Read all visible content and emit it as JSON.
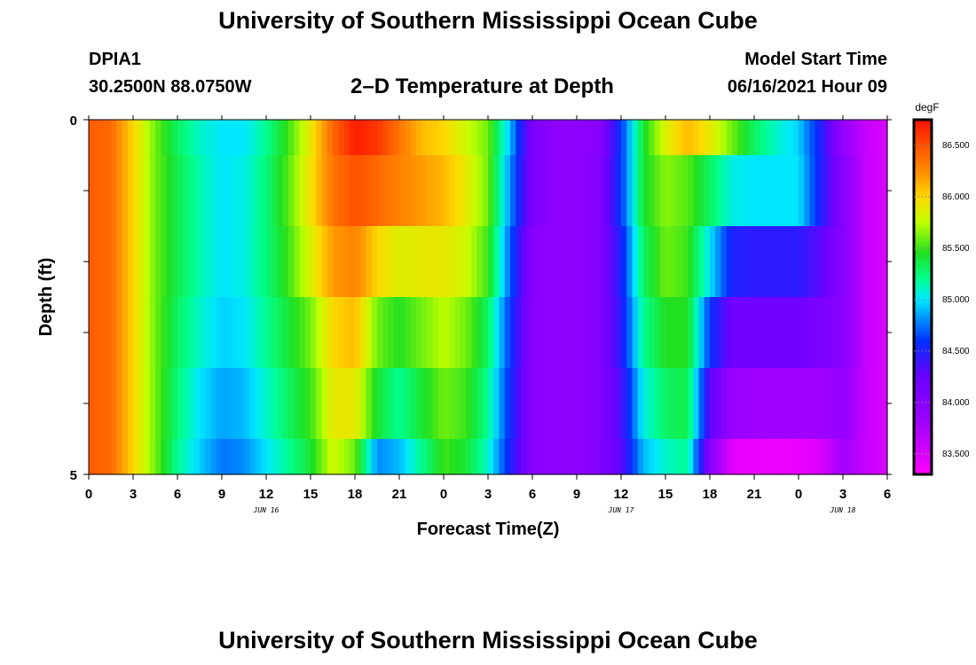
{
  "header": {
    "title": "University of Southern Mississippi Ocean Cube",
    "station_id": "DPIA1",
    "coords": "30.2500N  88.0750W",
    "plot_title": "2–D Temperature at Depth",
    "model_label": "Model Start Time",
    "model_time": "06/16/2021 Hour 09"
  },
  "footer": {
    "title": "University of Southern Mississippi Ocean Cube"
  },
  "chart_data": {
    "type": "heatmap",
    "title": "2–D Temperature at Depth",
    "xlabel": "Forecast Time(Z)",
    "ylabel": "Depth (ft)",
    "x_unit": "hours since 2021-06-16 00Z",
    "xlim": [
      0,
      54
    ],
    "ylim": [
      0,
      5
    ],
    "y_ticks": [
      0,
      5
    ],
    "x_tick_labels": [
      "0",
      "3",
      "6",
      "9",
      "12",
      "15",
      "18",
      "21",
      "0",
      "3",
      "6",
      "9",
      "12",
      "15",
      "18",
      "21",
      "0",
      "3",
      "6"
    ],
    "date_labels": [
      {
        "x": 12,
        "label": "JUN 16"
      },
      {
        "x": 36,
        "label": "JUN 17"
      },
      {
        "x": 51,
        "label": "JUN 18"
      }
    ],
    "colorbar": {
      "unit": "degF",
      "range": [
        83.3,
        86.75
      ],
      "ticks": [
        "83.500",
        "84.000",
        "84.500",
        "85.000",
        "85.500",
        "86.000",
        "86.500"
      ],
      "stops": [
        {
          "v": 83.3,
          "c": "#ff00ff"
        },
        {
          "v": 83.8,
          "c": "#a000ff"
        },
        {
          "v": 84.25,
          "c": "#6a00ff"
        },
        {
          "v": 84.6,
          "c": "#0030ff"
        },
        {
          "v": 85.0,
          "c": "#00e8ff"
        },
        {
          "v": 85.2,
          "c": "#00ff90"
        },
        {
          "v": 85.45,
          "c": "#20e020"
        },
        {
          "v": 85.75,
          "c": "#c0ff00"
        },
        {
          "v": 86.0,
          "c": "#ffd800"
        },
        {
          "v": 86.2,
          "c": "#ff9a00"
        },
        {
          "v": 86.5,
          "c": "#ff5000"
        },
        {
          "v": 86.75,
          "c": "#ff1000"
        }
      ]
    },
    "depths": [
      0,
      1,
      2,
      3,
      4,
      5
    ],
    "times": [
      0,
      1.5,
      3,
      4.5,
      6,
      7.5,
      9,
      10.5,
      12,
      13.5,
      15,
      16.5,
      18,
      19.5,
      21,
      22.5,
      24,
      25.5,
      27,
      28.5,
      30,
      31.5,
      33,
      34.5,
      36,
      37.5,
      39,
      40.5,
      42,
      43.5,
      45,
      46.5,
      48,
      49.5,
      51,
      52.5,
      54
    ],
    "values": [
      [
        86.45,
        86.4,
        86.0,
        85.6,
        85.3,
        85.1,
        85.0,
        85.0,
        85.2,
        85.5,
        85.9,
        86.4,
        86.7,
        86.6,
        86.35,
        86.1,
        86.0,
        85.8,
        85.6,
        84.9,
        84.1,
        83.95,
        83.95,
        84.0,
        84.6,
        85.4,
        85.85,
        86.1,
        85.9,
        85.6,
        85.3,
        85.1,
        84.95,
        84.5,
        83.9,
        83.6,
        83.5
      ],
      [
        86.45,
        86.4,
        86.0,
        85.6,
        85.35,
        85.15,
        85.0,
        85.05,
        85.25,
        85.55,
        85.95,
        86.35,
        86.5,
        86.4,
        86.3,
        86.2,
        86.1,
        85.9,
        85.6,
        84.8,
        84.1,
        83.95,
        83.95,
        84.05,
        84.6,
        85.4,
        85.65,
        85.55,
        85.3,
        85.05,
        85.0,
        85.0,
        85.0,
        84.5,
        84.0,
        83.6,
        83.5
      ],
      [
        86.45,
        86.4,
        86.0,
        85.6,
        85.35,
        85.15,
        85.0,
        85.05,
        85.25,
        85.5,
        85.85,
        86.2,
        86.3,
        86.0,
        85.85,
        85.9,
        85.9,
        85.8,
        85.5,
        84.7,
        84.0,
        83.95,
        83.95,
        84.05,
        84.5,
        85.3,
        85.6,
        85.5,
        85.0,
        84.5,
        84.45,
        84.45,
        84.45,
        84.3,
        84.0,
        83.6,
        83.5
      ],
      [
        86.45,
        86.4,
        86.0,
        85.6,
        85.3,
        85.1,
        84.95,
        85.0,
        85.2,
        85.4,
        85.6,
        86.0,
        86.1,
        85.6,
        85.45,
        85.6,
        85.75,
        85.6,
        85.3,
        84.6,
        84.0,
        83.95,
        83.95,
        84.05,
        84.45,
        85.2,
        85.45,
        85.45,
        84.6,
        84.2,
        84.2,
        84.2,
        84.2,
        84.1,
        84.0,
        83.6,
        83.5
      ],
      [
        86.45,
        86.4,
        86.0,
        85.6,
        85.25,
        85.0,
        84.85,
        84.9,
        85.1,
        85.3,
        85.5,
        85.9,
        85.9,
        85.4,
        85.2,
        85.4,
        85.6,
        85.5,
        85.2,
        84.55,
        84.0,
        83.95,
        83.95,
        84.05,
        84.35,
        85.05,
        85.3,
        85.35,
        84.3,
        83.85,
        83.8,
        83.8,
        83.8,
        83.8,
        83.9,
        83.6,
        83.5
      ],
      [
        86.45,
        86.4,
        86.0,
        85.6,
        85.2,
        84.95,
        84.75,
        84.8,
        85.0,
        85.2,
        85.4,
        85.8,
        85.6,
        84.8,
        84.9,
        85.2,
        85.5,
        85.4,
        85.1,
        84.5,
        84.0,
        83.95,
        83.95,
        84.05,
        84.3,
        84.9,
        85.1,
        85.2,
        84.0,
        83.45,
        83.4,
        83.4,
        83.4,
        83.5,
        83.8,
        83.6,
        83.5
      ]
    ]
  }
}
